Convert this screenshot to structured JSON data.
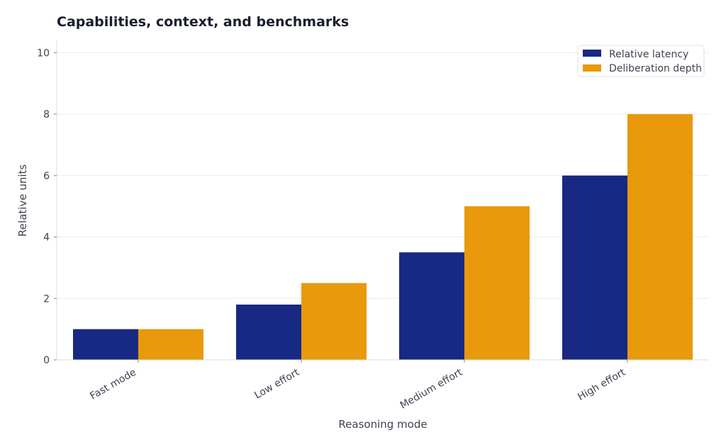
{
  "chart_data": {
    "type": "bar",
    "title": "Capabilities, context, and benchmarks",
    "xlabel": "Reasoning mode",
    "ylabel": "Relative units",
    "categories": [
      "Fast mode",
      "Low effort",
      "Medium effort",
      "High effort"
    ],
    "series": [
      {
        "name": "Relative latency",
        "values": [
          1,
          1.8,
          3.5,
          6
        ],
        "color": "#172983"
      },
      {
        "name": "Deliberation depth",
        "values": [
          1,
          2.5,
          5,
          8
        ],
        "color": "#e8990c"
      }
    ],
    "ylim": [
      0,
      10.4
    ],
    "yticks": [
      "0",
      "2",
      "4",
      "6",
      "8",
      "10"
    ],
    "grid": true,
    "legend_position": "top-right"
  }
}
